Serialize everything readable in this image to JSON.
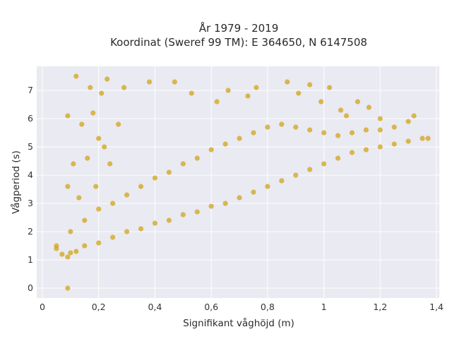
{
  "chart_data": {
    "type": "scatter",
    "title": "År 1979 - 2019",
    "subtitle": "Koordinat (Sweref 99 TM): E 364650, N 6147508",
    "xlabel": "Signifikant våghöjd (m)",
    "ylabel": "Vågperiod (s)",
    "xlim": [
      -0.02,
      1.41
    ],
    "ylim": [
      -0.35,
      7.85
    ],
    "x_ticks": [
      0,
      0.2,
      0.4,
      0.6,
      0.8,
      1,
      1.2,
      1.4
    ],
    "x_tick_labels": [
      "0",
      "0,2",
      "0,4",
      "0,6",
      "0,8",
      "1",
      "1,2",
      "1,4"
    ],
    "y_ticks": [
      0,
      1,
      2,
      3,
      4,
      5,
      6,
      7
    ],
    "y_tick_labels": [
      "0",
      "1",
      "2",
      "3",
      "4",
      "5",
      "6",
      "7"
    ],
    "grid": true,
    "legend": "none",
    "marker_color": "#D4A520",
    "background": "#E9EAF2",
    "series": [
      {
        "points": [
          [
            0.09,
            0.0
          ],
          [
            0.05,
            1.4
          ],
          [
            0.05,
            1.5
          ],
          [
            0.07,
            1.2
          ],
          [
            0.09,
            1.1
          ],
          [
            0.1,
            1.25
          ],
          [
            0.12,
            1.3
          ],
          [
            0.15,
            1.5
          ],
          [
            0.2,
            1.6
          ],
          [
            0.25,
            1.8
          ],
          [
            0.3,
            2.0
          ],
          [
            0.35,
            2.1
          ],
          [
            0.4,
            2.3
          ],
          [
            0.45,
            2.4
          ],
          [
            0.5,
            2.6
          ],
          [
            0.55,
            2.7
          ],
          [
            0.6,
            2.9
          ],
          [
            0.65,
            3.0
          ],
          [
            0.7,
            3.2
          ],
          [
            0.75,
            3.4
          ],
          [
            0.8,
            3.6
          ],
          [
            0.85,
            3.8
          ],
          [
            0.9,
            4.0
          ],
          [
            0.95,
            4.2
          ],
          [
            1.0,
            4.4
          ],
          [
            1.05,
            4.6
          ],
          [
            1.1,
            4.8
          ],
          [
            1.15,
            4.9
          ],
          [
            1.2,
            5.0
          ],
          [
            1.25,
            5.1
          ],
          [
            1.3,
            5.2
          ],
          [
            1.35,
            5.3
          ],
          [
            1.37,
            5.3
          ],
          [
            0.1,
            2.0
          ],
          [
            0.15,
            2.4
          ],
          [
            0.2,
            2.8
          ],
          [
            0.25,
            3.0
          ],
          [
            0.3,
            3.3
          ],
          [
            0.35,
            3.6
          ],
          [
            0.4,
            3.9
          ],
          [
            0.45,
            4.1
          ],
          [
            0.5,
            4.4
          ],
          [
            0.55,
            4.6
          ],
          [
            0.6,
            4.9
          ],
          [
            0.65,
            5.1
          ],
          [
            0.7,
            5.3
          ],
          [
            0.75,
            5.5
          ],
          [
            0.8,
            5.7
          ],
          [
            0.85,
            5.8
          ],
          [
            0.9,
            5.7
          ],
          [
            0.95,
            5.6
          ],
          [
            1.0,
            5.5
          ],
          [
            1.05,
            5.4
          ],
          [
            1.1,
            5.5
          ],
          [
            1.15,
            5.6
          ],
          [
            1.2,
            5.6
          ],
          [
            1.25,
            5.7
          ],
          [
            1.3,
            5.9
          ],
          [
            1.32,
            6.1
          ],
          [
            0.12,
            7.5
          ],
          [
            0.17,
            7.1
          ],
          [
            0.21,
            6.9
          ],
          [
            0.23,
            7.4
          ],
          [
            0.29,
            7.1
          ],
          [
            0.38,
            7.3
          ],
          [
            0.47,
            7.3
          ],
          [
            0.53,
            6.9
          ],
          [
            0.62,
            6.6
          ],
          [
            0.66,
            7.0
          ],
          [
            0.73,
            6.8
          ],
          [
            0.76,
            7.1
          ],
          [
            0.87,
            7.3
          ],
          [
            0.91,
            6.9
          ],
          [
            0.95,
            7.2
          ],
          [
            0.99,
            6.6
          ],
          [
            1.02,
            7.1
          ],
          [
            1.06,
            6.3
          ],
          [
            1.08,
            6.1
          ],
          [
            1.12,
            6.6
          ],
          [
            1.16,
            6.4
          ],
          [
            1.2,
            6.0
          ],
          [
            0.09,
            6.1
          ],
          [
            0.11,
            4.4
          ],
          [
            0.14,
            5.8
          ],
          [
            0.18,
            6.2
          ],
          [
            0.2,
            5.3
          ],
          [
            0.09,
            3.6
          ],
          [
            0.13,
            3.2
          ],
          [
            0.16,
            4.6
          ],
          [
            0.24,
            4.4
          ],
          [
            0.27,
            5.8
          ],
          [
            0.19,
            3.6
          ],
          [
            0.22,
            5.0
          ]
        ]
      }
    ]
  }
}
